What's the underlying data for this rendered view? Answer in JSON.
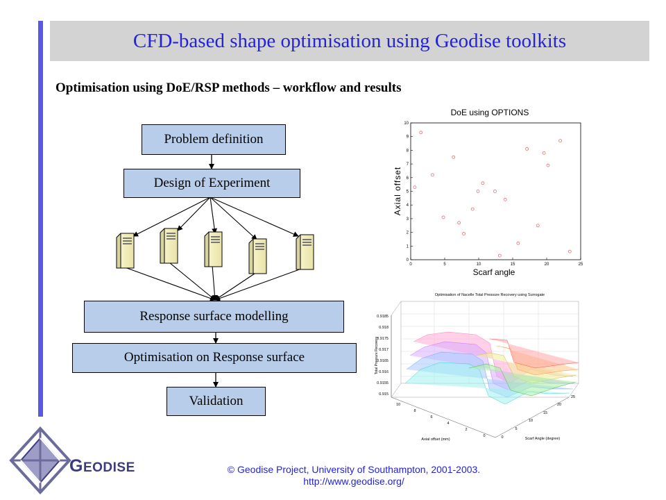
{
  "slide": {
    "title": "CFD-based shape optimisation using Geodise toolkits",
    "subtitle": "Optimisation using DoE/RSP methods – workflow and results"
  },
  "workflow": {
    "steps": [
      "Problem definition",
      "Design of Experiment",
      "Response surface modelling",
      "Optimisation on Response surface",
      "Validation"
    ],
    "server_count": 5,
    "server_icon": "server-icon"
  },
  "scatter": {
    "chart_data": {
      "type": "scatter",
      "title": "DoE using OPTIONS",
      "xlabel": "Scarf angle",
      "ylabel": "Axial offset",
      "xlim": [
        0,
        25
      ],
      "ylim": [
        0,
        10
      ],
      "xticks": [
        "0",
        "5",
        "10",
        "15",
        "20",
        "25"
      ],
      "yticks": [
        "0",
        "1",
        "2",
        "3",
        "4",
        "5",
        "6",
        "7",
        "8",
        "9",
        "10"
      ],
      "marker_color": "#e07070",
      "x": [
        0.6,
        1.5,
        3.2,
        4.8,
        6.3,
        7.1,
        7.8,
        9.1,
        9.9,
        10.6,
        12.4,
        13.1,
        13.9,
        15.8,
        17.1,
        18.7,
        19.6,
        20.2,
        22.0,
        23.4
      ],
      "y": [
        5.3,
        9.3,
        6.2,
        3.1,
        7.5,
        2.7,
        1.9,
        3.7,
        5.0,
        5.6,
        5.0,
        0.3,
        4.4,
        1.2,
        8.1,
        2.5,
        7.8,
        6.9,
        8.7,
        0.6
      ]
    }
  },
  "surface": {
    "title": "Optimisation of Nacelle Total Pressure Recovery using Surrogate",
    "z_label": "Total Pressure Recovery",
    "x_label": "Axial offset (mm)",
    "y_label": "Scarf Angle (degree)",
    "z_ticks": [
      "0.9185",
      "0.918",
      "0.9175",
      "0.917",
      "0.9165",
      "0.916",
      "0.9155",
      "0.915"
    ],
    "x_ticks": [
      "10",
      "8",
      "6",
      "4",
      "2",
      "0"
    ],
    "y_ticks": [
      "0",
      "5",
      "10",
      "15",
      "20",
      "25"
    ]
  },
  "footer": {
    "copyright": "© Geodise Project, University of Southampton, 2001-2003.",
    "url": "http://www.geodise.org/"
  },
  "logo": {
    "letter": "G",
    "rest": "EODISE",
    "color": "#3b3b80"
  }
}
